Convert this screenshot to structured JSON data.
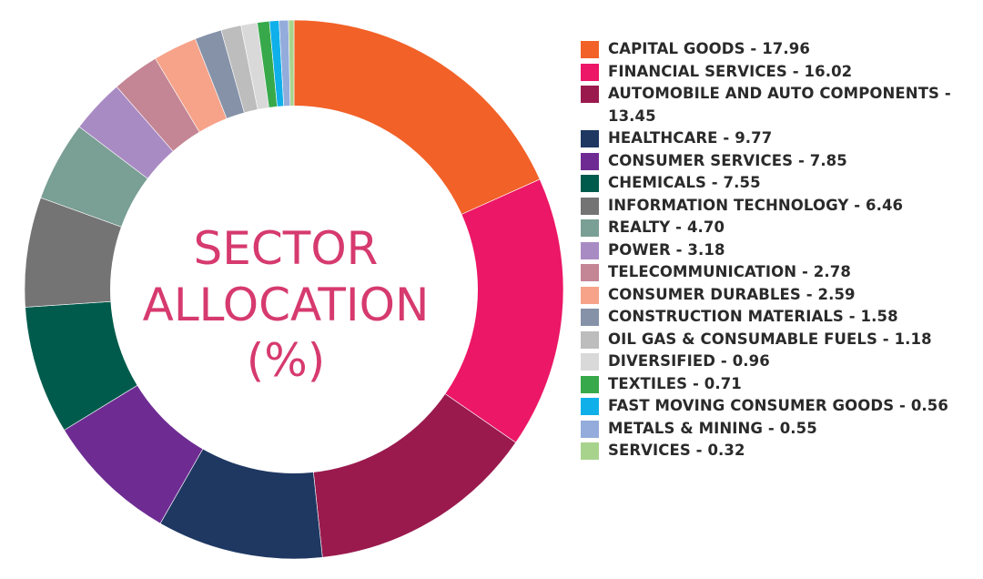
{
  "chart_data": {
    "type": "pie",
    "style": "donut",
    "title": "SECTOR ALLOCATION (%)",
    "title_lines": [
      "SECTOR",
      "ALLOCATION",
      "(%)"
    ],
    "legend_position": "right",
    "series": [
      {
        "name": "CAPITAL GOODS",
        "label": "CAPITAL GOODS - 17.96",
        "value": 17.96,
        "color": "#f26127"
      },
      {
        "name": "FINANCIAL SERVICES",
        "label": "FINANCIAL SERVICES - 16.02",
        "value": 16.02,
        "color": "#ec1766"
      },
      {
        "name": "AUTOMOBILE AND AUTO COMPONENTS",
        "label": "AUTOMOBILE AND AUTO COMPONENTS - 13.45",
        "value": 13.45,
        "color": "#9a1a4e"
      },
      {
        "name": "HEALTHCARE",
        "label": "HEALTHCARE - 9.77",
        "value": 9.77,
        "color": "#1e3862"
      },
      {
        "name": "CONSUMER SERVICES",
        "label": "CONSUMER SERVICES - 7.85",
        "value": 7.85,
        "color": "#6e2c93"
      },
      {
        "name": "CHEMICALS",
        "label": "CHEMICALS - 7.55",
        "value": 7.55,
        "color": "#005b4c"
      },
      {
        "name": "INFORMATION TECHNOLOGY",
        "label": "INFORMATION TECHNOLOGY - 6.46",
        "value": 6.46,
        "color": "#747474"
      },
      {
        "name": "REALTY",
        "label": "REALTY - 4.70",
        "value": 4.7,
        "color": "#7a9f94"
      },
      {
        "name": "POWER",
        "label": "POWER - 3.18",
        "value": 3.18,
        "color": "#a98bc4"
      },
      {
        "name": "TELECOMMUNICATION",
        "label": "TELECOMMUNICATION - 2.78",
        "value": 2.78,
        "color": "#c48594"
      },
      {
        "name": "CONSUMER DURABLES",
        "label": "CONSUMER DURABLES - 2.59",
        "value": 2.59,
        "color": "#f6a38a"
      },
      {
        "name": "CONSTRUCTION MATERIALS",
        "label": "CONSTRUCTION MATERIALS - 1.58",
        "value": 1.58,
        "color": "#8592a8"
      },
      {
        "name": "OIL GAS & CONSUMABLE FUELS",
        "label": "OIL GAS & CONSUMABLE FUELS - 1.18",
        "value": 1.18,
        "color": "#bdbdbd"
      },
      {
        "name": "DIVERSIFIED",
        "label": "DIVERSIFIED - 0.96",
        "value": 0.96,
        "color": "#d9d9d9"
      },
      {
        "name": "TEXTILES",
        "label": "TEXTILES - 0.71",
        "value": 0.71,
        "color": "#37a94a"
      },
      {
        "name": "FAST MOVING CONSUMER GOODS",
        "label": "FAST MOVING CONSUMER GOODS - 0.56",
        "value": 0.56,
        "color": "#0fb0ea"
      },
      {
        "name": "METALS & MINING",
        "label": "METALS & MINING - 0.55",
        "value": 0.55,
        "color": "#93acdb"
      },
      {
        "name": "SERVICES",
        "label": "SERVICES - 0.32",
        "value": 0.32,
        "color": "#a8d38d"
      }
    ]
  }
}
